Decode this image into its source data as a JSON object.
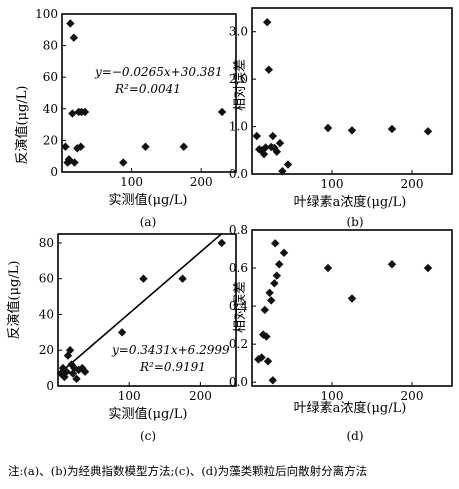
{
  "note": "注:(a)、(b)为经典指数模型方法;(c)、(d)为藻类颗粒后向散射分离方法",
  "chart_data": [
    {
      "id": "a",
      "type": "scatter",
      "panel_label": "(a)",
      "xlabel": "实测值(μg/L)",
      "ylabel": "反演值(μg/L)",
      "xlim": [
        0,
        250
      ],
      "ylim": [
        0,
        100
      ],
      "xticks": [
        0,
        100,
        200
      ],
      "xtick_labels": [
        "",
        "100",
        "200"
      ],
      "yticks": [
        0,
        20,
        40,
        60,
        80,
        100
      ],
      "ytick_labels": [
        "0",
        "20",
        "40",
        "60",
        "80",
        "100"
      ],
      "points": [
        [
          5,
          16
        ],
        [
          8,
          6
        ],
        [
          10,
          8
        ],
        [
          11,
          7
        ],
        [
          12,
          94
        ],
        [
          15,
          37
        ],
        [
          17,
          85
        ],
        [
          18,
          6
        ],
        [
          22,
          15
        ],
        [
          24,
          38
        ],
        [
          27,
          16
        ],
        [
          28,
          38
        ],
        [
          33,
          38
        ],
        [
          88,
          6
        ],
        [
          120,
          16
        ],
        [
          175,
          16
        ],
        [
          230,
          38
        ]
      ],
      "equation": "y=−0.0265x+30.381",
      "r2": "R²=0.0041"
    },
    {
      "id": "b",
      "type": "scatter",
      "panel_label": "(b)",
      "xlabel": "叶绿素a浓度(μg/L)",
      "ylabel": "相对误差",
      "xlim": [
        0,
        250
      ],
      "ylim": [
        0,
        3.5
      ],
      "xticks": [
        0,
        100,
        200
      ],
      "xtick_labels": [
        "",
        "100",
        "200"
      ],
      "yticks": [
        0,
        1,
        2,
        3
      ],
      "ytick_labels": [
        "0.0",
        "1.0",
        "2.0",
        "3.0"
      ],
      "points": [
        [
          6,
          0.8
        ],
        [
          9,
          0.52
        ],
        [
          12,
          0.5
        ],
        [
          15,
          0.42
        ],
        [
          17,
          0.56
        ],
        [
          19,
          3.2
        ],
        [
          21,
          2.2
        ],
        [
          24,
          0.57
        ],
        [
          26,
          0.8
        ],
        [
          28,
          0.55
        ],
        [
          31,
          0.47
        ],
        [
          35,
          0.65
        ],
        [
          38,
          0.06
        ],
        [
          45,
          0.2
        ],
        [
          95,
          0.97
        ],
        [
          125,
          0.92
        ],
        [
          175,
          0.95
        ],
        [
          220,
          0.9
        ]
      ]
    },
    {
      "id": "c",
      "type": "scatter",
      "panel_label": "(c)",
      "xlabel": "实测值(μg/L)",
      "ylabel": "反演值(μg/L)",
      "xlim": [
        0,
        250
      ],
      "ylim": [
        0,
        85
      ],
      "xticks": [
        0,
        100,
        200
      ],
      "xtick_labels": [
        "",
        "100",
        "200"
      ],
      "yticks": [
        0,
        20,
        40,
        60,
        80
      ],
      "ytick_labels": [
        "0",
        "20",
        "40",
        "60",
        "80"
      ],
      "points": [
        [
          4,
          7
        ],
        [
          7,
          10
        ],
        [
          9,
          5
        ],
        [
          12,
          8
        ],
        [
          14,
          17
        ],
        [
          17,
          20
        ],
        [
          19,
          12
        ],
        [
          21,
          7
        ],
        [
          23,
          10
        ],
        [
          26,
          4
        ],
        [
          29,
          9
        ],
        [
          34,
          10
        ],
        [
          38,
          8
        ],
        [
          90,
          30
        ],
        [
          120,
          60
        ],
        [
          175,
          60
        ],
        [
          230,
          80
        ]
      ],
      "fit_line": [
        [
          0,
          6.3
        ],
        [
          230,
          85.2
        ]
      ],
      "equation": "y=0.3431x+6.2999",
      "r2": "R²=0.9191"
    },
    {
      "id": "d",
      "type": "scatter",
      "panel_label": "(d)",
      "xlabel": "叶绿素a浓度(μg/L)",
      "ylabel": "相对误差",
      "xlim": [
        0,
        250
      ],
      "ylim": [
        -0.02,
        0.8
      ],
      "xticks": [
        0,
        100,
        200
      ],
      "xtick_labels": [
        "",
        "100",
        "200"
      ],
      "yticks": [
        0,
        0.2,
        0.4,
        0.6,
        0.8
      ],
      "ytick_labels": [
        "0.0",
        "0.2",
        "0.4",
        "0.6",
        "0.8"
      ],
      "points": [
        [
          8,
          0.12
        ],
        [
          12,
          0.13
        ],
        [
          14,
          0.25
        ],
        [
          16,
          0.38
        ],
        [
          18,
          0.24
        ],
        [
          20,
          0.11
        ],
        [
          22,
          0.47
        ],
        [
          24,
          0.43
        ],
        [
          26,
          0.01
        ],
        [
          28,
          0.52
        ],
        [
          29,
          0.73
        ],
        [
          31,
          0.56
        ],
        [
          34,
          0.62
        ],
        [
          40,
          0.68
        ],
        [
          95,
          0.6
        ],
        [
          125,
          0.44
        ],
        [
          175,
          0.62
        ],
        [
          220,
          0.6
        ]
      ]
    }
  ]
}
